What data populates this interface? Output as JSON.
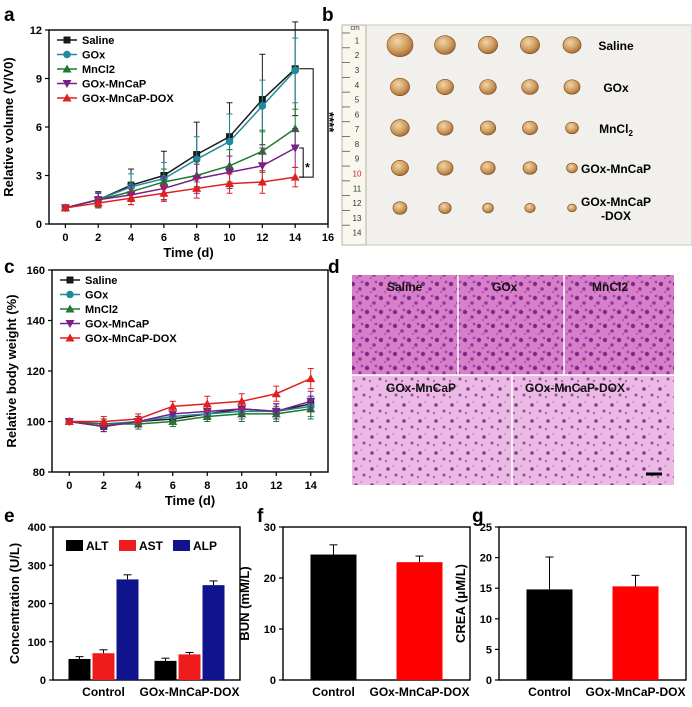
{
  "panel_labels": {
    "a": "a",
    "b": "b",
    "c": "c",
    "d": "d",
    "e": "e",
    "f": "f",
    "g": "g"
  },
  "colors": {
    "saline": "#1a1a1a",
    "gox": "#1f8a9a",
    "mncl2": "#1e7a2e",
    "goxmncap": "#7a1f8a",
    "dox": "#e02020",
    "alt": "#000000",
    "ast": "#ee1c1c",
    "alp": "#10148c",
    "control": "#000000",
    "goxdox": "#ff0000"
  },
  "photo_b": {
    "rows": [
      "Saline",
      "GOx",
      "MnCl2",
      "GOx-MnCaP",
      "GOx-MnCaP\n-DOX"
    ],
    "ruler_marks": [
      "1",
      "2",
      "3",
      "4",
      "5",
      "6",
      "7",
      "8",
      "9",
      "10",
      "11",
      "12",
      "13",
      "14"
    ],
    "ruler_unit": "cm",
    "tumor_sizes": [
      [
        1.0,
        0.8,
        0.74,
        0.74,
        0.7
      ],
      [
        0.74,
        0.66,
        0.64,
        0.64,
        0.62
      ],
      [
        0.72,
        0.62,
        0.6,
        0.58,
        0.5
      ],
      [
        0.66,
        0.62,
        0.56,
        0.54,
        0.42
      ],
      [
        0.54,
        0.48,
        0.42,
        0.4,
        0.34
      ]
    ]
  },
  "photo_d": {
    "labels": [
      "Saline",
      "GOx",
      "MnCl2",
      "GOx-MnCaP",
      "GOx-MnCaP-DOX"
    ]
  },
  "chart_data": [
    {
      "id": "a",
      "type": "line",
      "xlabel": "Time (d)",
      "ylabel": "Relative volume (V/V0)",
      "xlim": [
        -1,
        16
      ],
      "ylim": [
        0,
        12
      ],
      "xticks": [
        0,
        2,
        4,
        6,
        8,
        10,
        12,
        14,
        16
      ],
      "yticks": [
        0,
        3,
        6,
        9,
        12
      ],
      "x": [
        0,
        2,
        4,
        6,
        8,
        10,
        12,
        14
      ],
      "series": [
        {
          "name": "Saline",
          "values": [
            1.0,
            1.5,
            2.4,
            3.0,
            4.3,
            5.4,
            7.7,
            9.6
          ],
          "err": [
            0.15,
            0.5,
            1.0,
            1.5,
            2.0,
            2.1,
            2.8,
            2.9
          ]
        },
        {
          "name": "GOx",
          "values": [
            1.0,
            1.5,
            2.3,
            2.8,
            4.0,
            5.1,
            7.3,
            9.5
          ],
          "err": [
            0.15,
            0.45,
            0.8,
            1.0,
            1.4,
            1.7,
            1.6,
            2.0
          ]
        },
        {
          "name": "MnCl2",
          "values": [
            1.0,
            1.5,
            2.0,
            2.6,
            3.0,
            3.6,
            4.5,
            5.9
          ],
          "err": [
            0.15,
            0.4,
            0.6,
            0.8,
            0.9,
            1.0,
            1.3,
            1.2
          ]
        },
        {
          "name": "GOx-MnCaP",
          "values": [
            1.0,
            1.5,
            1.8,
            2.2,
            2.8,
            3.2,
            3.6,
            4.7
          ],
          "err": [
            0.15,
            0.4,
            0.6,
            0.7,
            0.9,
            1.0,
            1.1,
            1.2
          ]
        },
        {
          "name": "GOx-MnCaP-DOX",
          "values": [
            1.0,
            1.3,
            1.6,
            1.9,
            2.2,
            2.5,
            2.6,
            2.9
          ],
          "err": [
            0.15,
            0.3,
            0.4,
            0.5,
            0.6,
            0.6,
            0.7,
            0.6
          ]
        }
      ],
      "significance": [
        "****",
        "*"
      ]
    },
    {
      "id": "c",
      "type": "line",
      "xlabel": "Time (d)",
      "ylabel": "Relative body weight (%)",
      "xlim": [
        -1,
        15
      ],
      "ylim": [
        80,
        160
      ],
      "xticks": [
        0,
        2,
        4,
        6,
        8,
        10,
        12,
        14
      ],
      "yticks": [
        80,
        100,
        120,
        140,
        160
      ],
      "x": [
        0,
        2,
        4,
        6,
        8,
        10,
        12,
        14
      ],
      "series": [
        {
          "name": "Saline",
          "values": [
            100,
            98,
            100,
            101,
            103,
            105,
            104,
            107
          ],
          "err": [
            0.5,
            2,
            2,
            2,
            2,
            2,
            3,
            3
          ]
        },
        {
          "name": "GOx",
          "values": [
            100,
            99,
            100,
            102,
            103,
            104,
            104,
            106
          ],
          "err": [
            0.5,
            2,
            2,
            2,
            3,
            3,
            3,
            4
          ]
        },
        {
          "name": "MnCl2",
          "values": [
            100,
            99,
            99,
            100,
            102,
            103,
            103,
            105
          ],
          "err": [
            0.5,
            2,
            2,
            2,
            2,
            3,
            3,
            4
          ]
        },
        {
          "name": "GOx-MnCaP",
          "values": [
            100,
            98,
            100,
            103,
            104,
            105,
            104,
            108
          ],
          "err": [
            0.5,
            2,
            2,
            2,
            2,
            3,
            3,
            4
          ]
        },
        {
          "name": "GOx-MnCaP-DOX",
          "values": [
            100,
            100,
            101,
            106,
            107,
            108,
            111,
            117
          ],
          "err": [
            0.5,
            2,
            2,
            2,
            3,
            3,
            3,
            4
          ]
        }
      ]
    },
    {
      "id": "e",
      "type": "bar",
      "ylabel": "Concentration (U/L)",
      "ylim": [
        0,
        400
      ],
      "yticks": [
        0,
        100,
        200,
        300,
        400
      ],
      "categories": [
        "Control",
        "GOx-MnCaP-DOX"
      ],
      "series": [
        {
          "name": "ALT",
          "values": [
            55,
            50
          ],
          "err": [
            6,
            7
          ]
        },
        {
          "name": "AST",
          "values": [
            70,
            67
          ],
          "err": [
            9,
            5
          ]
        },
        {
          "name": "ALP",
          "values": [
            263,
            248
          ],
          "err": [
            12,
            11
          ]
        }
      ]
    },
    {
      "id": "f",
      "type": "bar",
      "ylabel": "BUN (mM/L)",
      "ylim": [
        0,
        30
      ],
      "yticks": [
        0,
        10,
        20,
        30
      ],
      "categories": [
        "Control",
        "GOx-MnCaP-DOX"
      ],
      "values": [
        24.6,
        23.1
      ],
      "err": [
        1.9,
        1.2
      ]
    },
    {
      "id": "g",
      "type": "bar",
      "ylabel": "CREA (μM/L)",
      "ylim": [
        0,
        25
      ],
      "yticks": [
        0,
        5,
        10,
        15,
        20,
        25
      ],
      "categories": [
        "Control",
        "GOx-MnCaP-DOX"
      ],
      "values": [
        14.8,
        15.3
      ],
      "err": [
        5.3,
        1.8
      ]
    }
  ]
}
